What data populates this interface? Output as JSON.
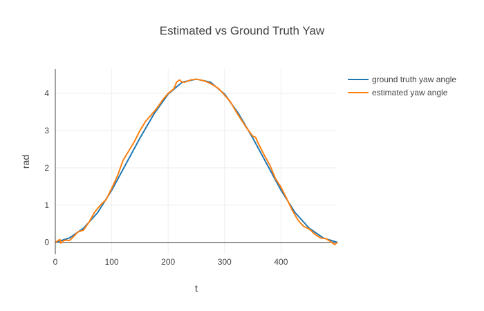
{
  "chart_data": {
    "type": "line",
    "title": "Estimated vs Ground Truth Yaw",
    "xlabel": "t",
    "ylabel": "rad",
    "xlim": [
      0,
      500
    ],
    "ylim": [
      -0.32,
      4.65
    ],
    "xticks": [
      0,
      100,
      200,
      300,
      400
    ],
    "yticks": [
      0,
      1,
      2,
      3,
      4
    ],
    "grid": true,
    "legend_position": "top-right",
    "series": [
      {
        "name": "ground truth yaw angle",
        "color": "#1f77b4",
        "x": [
          0,
          25,
          50,
          75,
          100,
          125,
          150,
          175,
          200,
          225,
          250,
          275,
          300,
          325,
          350,
          375,
          400,
          425,
          450,
          475,
          500
        ],
        "values": [
          0.0,
          0.12,
          0.38,
          0.8,
          1.4,
          2.1,
          2.8,
          3.45,
          3.98,
          4.3,
          4.38,
          4.3,
          3.98,
          3.45,
          2.8,
          2.1,
          1.4,
          0.8,
          0.38,
          0.12,
          0.0
        ]
      },
      {
        "name": "estimated yaw angle",
        "color": "#ff7f0e",
        "x": [
          0,
          8,
          10,
          15,
          20,
          25,
          30,
          40,
          50,
          60,
          70,
          80,
          90,
          100,
          110,
          120,
          130,
          140,
          150,
          160,
          170,
          180,
          190,
          200,
          210,
          215,
          220,
          225,
          230,
          240,
          250,
          260,
          270,
          280,
          290,
          300,
          310,
          320,
          330,
          340,
          350,
          355,
          360,
          370,
          380,
          390,
          400,
          410,
          420,
          430,
          440,
          450,
          460,
          470,
          480,
          490,
          495,
          500
        ],
        "values": [
          0.0,
          0.08,
          -0.02,
          0.05,
          0.06,
          0.05,
          0.12,
          0.28,
          0.33,
          0.55,
          0.82,
          1.0,
          1.15,
          1.45,
          1.78,
          2.2,
          2.45,
          2.7,
          3.0,
          3.25,
          3.42,
          3.6,
          3.82,
          4.0,
          4.12,
          4.3,
          4.36,
          4.3,
          4.3,
          4.36,
          4.38,
          4.35,
          4.3,
          4.22,
          4.12,
          3.95,
          3.78,
          3.52,
          3.28,
          3.05,
          2.85,
          2.82,
          2.65,
          2.35,
          2.08,
          1.72,
          1.48,
          1.18,
          0.86,
          0.6,
          0.43,
          0.36,
          0.22,
          0.12,
          0.1,
          0.0,
          -0.06,
          0.0
        ]
      }
    ]
  }
}
